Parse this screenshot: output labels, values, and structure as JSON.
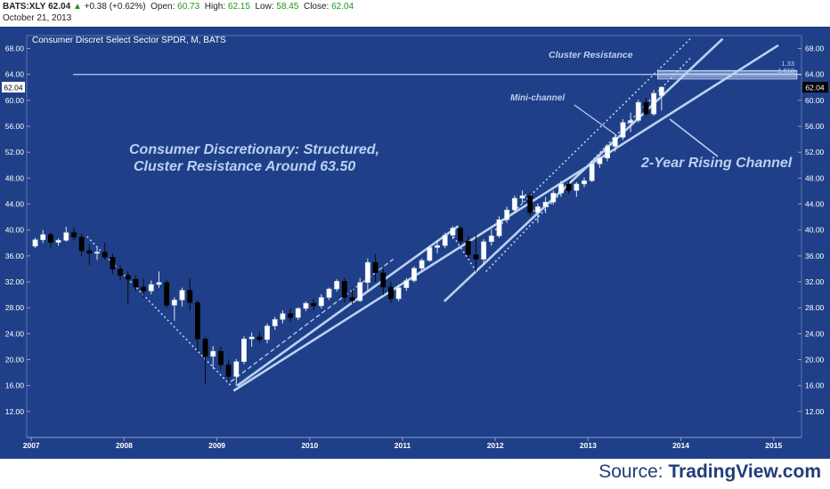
{
  "header": {
    "symbol": "BATS:XLY",
    "last": "62.04",
    "change": "+0.38 (+0.62%)",
    "open_label": "Open:",
    "open": "60.73",
    "high_label": "High:",
    "high": "62.15",
    "low_label": "Low:",
    "low": "58.45",
    "close_label": "Close:",
    "close": "62.04",
    "date": "October 21, 2013"
  },
  "footer": {
    "source_label": "Source:",
    "source_name": "TradingView.com"
  },
  "colors": {
    "background": "#1f4088",
    "header_bg": "#ffffff",
    "candle_up": "#ffffff",
    "candle_down": "#000000",
    "channel": "#bcd0f2",
    "annotation": "#bcd0f2",
    "axis_text": "#ffffff",
    "up_change": "#1a9a1a"
  },
  "icons": {
    "change_arrow": "up-triangle-icon"
  },
  "chart_data": {
    "type": "candlestick",
    "title": "Consumer Discret Select Sector SPDR, M, BATS",
    "ylim": [
      8,
      70
    ],
    "xlim": [
      2006.95,
      2015.3
    ],
    "y_ticks": [
      "12.00",
      "16.00",
      "20.00",
      "24.00",
      "28.00",
      "32.00",
      "36.00",
      "40.00",
      "44.00",
      "48.00",
      "52.00",
      "56.00",
      "60.00",
      "64.00",
      "68.00"
    ],
    "x_ticks": [
      "2007",
      "2008",
      "2009",
      "2010",
      "2011",
      "2012",
      "2013",
      "2014",
      "2015"
    ],
    "last_price_label": "62.04",
    "last_price": 62.04,
    "candles": [
      {
        "t": "2007-01",
        "o": 37.5,
        "h": 38.8,
        "l": 37.2,
        "c": 38.5
      },
      {
        "t": "2007-02",
        "o": 38.5,
        "h": 40.0,
        "l": 38.0,
        "c": 39.3
      },
      {
        "t": "2007-03",
        "o": 39.3,
        "h": 39.6,
        "l": 37.2,
        "c": 38.1
      },
      {
        "t": "2007-04",
        "o": 38.1,
        "h": 38.7,
        "l": 37.6,
        "c": 38.4
      },
      {
        "t": "2007-05",
        "o": 38.4,
        "h": 40.5,
        "l": 38.2,
        "c": 39.6
      },
      {
        "t": "2007-06",
        "o": 39.6,
        "h": 40.4,
        "l": 38.4,
        "c": 38.9
      },
      {
        "t": "2007-07",
        "o": 38.9,
        "h": 39.4,
        "l": 36.0,
        "c": 36.8
      },
      {
        "t": "2007-08",
        "o": 36.8,
        "h": 37.8,
        "l": 34.6,
        "c": 36.4
      },
      {
        "t": "2007-09",
        "o": 36.4,
        "h": 37.4,
        "l": 35.4,
        "c": 36.6
      },
      {
        "t": "2007-10",
        "o": 36.6,
        "h": 38.0,
        "l": 35.4,
        "c": 35.8
      },
      {
        "t": "2007-11",
        "o": 35.8,
        "h": 36.4,
        "l": 33.2,
        "c": 34.0
      },
      {
        "t": "2007-12",
        "o": 34.0,
        "h": 34.6,
        "l": 32.2,
        "c": 33.0
      },
      {
        "t": "2008-01",
        "o": 33.0,
        "h": 33.6,
        "l": 28.5,
        "c": 32.4
      },
      {
        "t": "2008-02",
        "o": 32.4,
        "h": 33.0,
        "l": 30.6,
        "c": 31.2
      },
      {
        "t": "2008-03",
        "o": 31.2,
        "h": 32.5,
        "l": 29.6,
        "c": 30.6
      },
      {
        "t": "2008-04",
        "o": 30.6,
        "h": 32.2,
        "l": 30.1,
        "c": 31.6
      },
      {
        "t": "2008-05",
        "o": 31.6,
        "h": 33.6,
        "l": 31.1,
        "c": 31.9
      },
      {
        "t": "2008-06",
        "o": 31.9,
        "h": 32.3,
        "l": 28.0,
        "c": 28.4
      },
      {
        "t": "2008-07",
        "o": 28.4,
        "h": 29.6,
        "l": 26.0,
        "c": 29.2
      },
      {
        "t": "2008-08",
        "o": 29.2,
        "h": 31.1,
        "l": 28.2,
        "c": 30.7
      },
      {
        "t": "2008-09",
        "o": 30.7,
        "h": 32.5,
        "l": 27.5,
        "c": 28.8
      },
      {
        "t": "2008-10",
        "o": 28.8,
        "h": 29.2,
        "l": 21.2,
        "c": 23.2
      },
      {
        "t": "2008-11",
        "o": 23.2,
        "h": 23.6,
        "l": 16.2,
        "c": 20.5
      },
      {
        "t": "2008-12",
        "o": 20.5,
        "h": 22.1,
        "l": 18.6,
        "c": 21.3
      },
      {
        "t": "2009-01",
        "o": 21.3,
        "h": 22.0,
        "l": 18.4,
        "c": 19.2
      },
      {
        "t": "2009-02",
        "o": 19.2,
        "h": 19.9,
        "l": 16.6,
        "c": 17.4
      },
      {
        "t": "2009-03",
        "o": 17.4,
        "h": 20.1,
        "l": 15.9,
        "c": 19.7
      },
      {
        "t": "2009-04",
        "o": 19.7,
        "h": 23.6,
        "l": 19.3,
        "c": 23.2
      },
      {
        "t": "2009-05",
        "o": 23.2,
        "h": 24.2,
        "l": 22.0,
        "c": 23.5
      },
      {
        "t": "2009-06",
        "o": 23.5,
        "h": 24.4,
        "l": 22.6,
        "c": 23.1
      },
      {
        "t": "2009-07",
        "o": 23.1,
        "h": 25.6,
        "l": 22.5,
        "c": 25.2
      },
      {
        "t": "2009-08",
        "o": 25.2,
        "h": 26.6,
        "l": 24.6,
        "c": 26.2
      },
      {
        "t": "2009-09",
        "o": 26.2,
        "h": 27.6,
        "l": 25.6,
        "c": 27.1
      },
      {
        "t": "2009-10",
        "o": 27.1,
        "h": 27.9,
        "l": 25.9,
        "c": 26.5
      },
      {
        "t": "2009-11",
        "o": 26.5,
        "h": 28.1,
        "l": 26.1,
        "c": 27.9
      },
      {
        "t": "2009-12",
        "o": 27.9,
        "h": 29.0,
        "l": 27.5,
        "c": 28.7
      },
      {
        "t": "2010-01",
        "o": 28.7,
        "h": 29.4,
        "l": 27.6,
        "c": 28.3
      },
      {
        "t": "2010-02",
        "o": 28.3,
        "h": 30.1,
        "l": 27.9,
        "c": 29.6
      },
      {
        "t": "2010-03",
        "o": 29.6,
        "h": 31.1,
        "l": 29.2,
        "c": 30.9
      },
      {
        "t": "2010-04",
        "o": 30.9,
        "h": 32.4,
        "l": 30.5,
        "c": 32.1
      },
      {
        "t": "2010-05",
        "o": 32.1,
        "h": 32.6,
        "l": 28.8,
        "c": 29.6
      },
      {
        "t": "2010-06",
        "o": 29.6,
        "h": 31.1,
        "l": 28.6,
        "c": 29.1
      },
      {
        "t": "2010-07",
        "o": 29.1,
        "h": 32.6,
        "l": 28.9,
        "c": 31.9
      },
      {
        "t": "2010-08",
        "o": 31.9,
        "h": 35.6,
        "l": 30.6,
        "c": 35.0
      },
      {
        "t": "2010-09",
        "o": 35.0,
        "h": 36.3,
        "l": 32.0,
        "c": 33.4
      },
      {
        "t": "2010-10",
        "o": 33.4,
        "h": 34.0,
        "l": 30.0,
        "c": 31.2
      },
      {
        "t": "2010-11",
        "o": 31.2,
        "h": 32.0,
        "l": 28.8,
        "c": 29.4
      },
      {
        "t": "2010-12",
        "o": 29.4,
        "h": 31.6,
        "l": 29.0,
        "c": 31.1
      },
      {
        "t": "2011-01",
        "o": 31.1,
        "h": 32.6,
        "l": 30.6,
        "c": 32.2
      },
      {
        "t": "2011-02",
        "o": 32.2,
        "h": 34.4,
        "l": 31.9,
        "c": 34.1
      },
      {
        "t": "2011-03",
        "o": 34.1,
        "h": 35.6,
        "l": 33.6,
        "c": 35.3
      },
      {
        "t": "2011-04",
        "o": 35.3,
        "h": 37.6,
        "l": 35.1,
        "c": 37.3
      },
      {
        "t": "2011-05",
        "o": 37.3,
        "h": 38.4,
        "l": 36.4,
        "c": 37.6
      },
      {
        "t": "2011-06",
        "o": 37.6,
        "h": 39.6,
        "l": 37.2,
        "c": 39.2
      },
      {
        "t": "2011-07",
        "o": 39.2,
        "h": 40.6,
        "l": 38.6,
        "c": 40.3
      },
      {
        "t": "2011-08",
        "o": 40.3,
        "h": 40.6,
        "l": 37.6,
        "c": 38.3
      },
      {
        "t": "2011-09",
        "o": 38.3,
        "h": 39.1,
        "l": 35.6,
        "c": 36.2
      },
      {
        "t": "2011-10",
        "o": 36.2,
        "h": 39.4,
        "l": 33.6,
        "c": 35.5
      },
      {
        "t": "2011-11",
        "o": 35.5,
        "h": 38.6,
        "l": 34.6,
        "c": 38.2
      },
      {
        "t": "2011-12",
        "o": 38.2,
        "h": 40.1,
        "l": 37.6,
        "c": 39.1
      },
      {
        "t": "2012-01",
        "o": 39.1,
        "h": 42.1,
        "l": 38.8,
        "c": 41.6
      },
      {
        "t": "2012-02",
        "o": 41.6,
        "h": 43.6,
        "l": 41.1,
        "c": 43.1
      },
      {
        "t": "2012-03",
        "o": 43.1,
        "h": 45.3,
        "l": 42.6,
        "c": 44.9
      },
      {
        "t": "2012-04",
        "o": 44.9,
        "h": 46.1,
        "l": 44.1,
        "c": 45.3
      },
      {
        "t": "2012-05",
        "o": 45.3,
        "h": 45.8,
        "l": 42.1,
        "c": 42.7
      },
      {
        "t": "2012-06",
        "o": 42.7,
        "h": 44.1,
        "l": 41.1,
        "c": 43.6
      },
      {
        "t": "2012-07",
        "o": 43.6,
        "h": 45.1,
        "l": 42.6,
        "c": 44.3
      },
      {
        "t": "2012-08",
        "o": 44.3,
        "h": 46.1,
        "l": 43.9,
        "c": 45.7
      },
      {
        "t": "2012-09",
        "o": 45.7,
        "h": 47.6,
        "l": 45.1,
        "c": 47.1
      },
      {
        "t": "2012-10",
        "o": 47.1,
        "h": 47.6,
        "l": 45.6,
        "c": 46.1
      },
      {
        "t": "2012-11",
        "o": 46.1,
        "h": 47.4,
        "l": 45.1,
        "c": 47.1
      },
      {
        "t": "2012-12",
        "o": 47.1,
        "h": 48.1,
        "l": 46.6,
        "c": 47.6
      },
      {
        "t": "2013-01",
        "o": 47.6,
        "h": 50.6,
        "l": 47.4,
        "c": 50.2
      },
      {
        "t": "2013-02",
        "o": 50.2,
        "h": 51.4,
        "l": 49.6,
        "c": 51.1
      },
      {
        "t": "2013-03",
        "o": 51.1,
        "h": 53.2,
        "l": 50.6,
        "c": 52.9
      },
      {
        "t": "2013-04",
        "o": 52.9,
        "h": 54.6,
        "l": 52.1,
        "c": 54.3
      },
      {
        "t": "2013-05",
        "o": 54.3,
        "h": 57.1,
        "l": 53.9,
        "c": 56.6
      },
      {
        "t": "2013-06",
        "o": 56.6,
        "h": 58.1,
        "l": 55.1,
        "c": 56.9
      },
      {
        "t": "2013-07",
        "o": 56.9,
        "h": 60.1,
        "l": 56.6,
        "c": 59.7
      },
      {
        "t": "2013-08",
        "o": 59.7,
        "h": 60.4,
        "l": 57.6,
        "c": 57.9
      },
      {
        "t": "2013-09",
        "o": 57.9,
        "h": 61.6,
        "l": 57.6,
        "c": 61.1
      },
      {
        "t": "2013-10",
        "o": 60.73,
        "h": 62.15,
        "l": 58.45,
        "c": 62.04
      }
    ],
    "annotations": {
      "main_text_1": "Consumer Discretionary: Structured,",
      "main_text_2": "Cluster Resistance Around 63.50",
      "cluster_label": "Cluster Resistance",
      "mini_channel_label": "Mini-channel",
      "rising_channel_label": "2-Year Rising Channel",
      "fib_1": "1.33",
      "fib_2": "1.618"
    },
    "trendlines": [
      {
        "name": "rising-channel-lower",
        "style": "solid",
        "p1": [
          2009.18,
          15.2
        ],
        "p2": [
          2015.05,
          68.5
        ]
      },
      {
        "name": "rising-channel-upper",
        "style": "solid",
        "p1": [
          2011.45,
          29.0
        ],
        "p2": [
          2014.45,
          69.5
        ]
      },
      {
        "name": "rising-channel-base",
        "style": "solid",
        "p1": [
          2009.22,
          16.0
        ],
        "p2": [
          2011.6,
          40.6
        ]
      },
      {
        "name": "mini-channel-lower",
        "style": "dotted",
        "p1": [
          2011.9,
          33.6
        ],
        "p2": [
          2014.1,
          66.5
        ]
      },
      {
        "name": "mini-channel-upper",
        "style": "dotted",
        "p1": [
          2012.0,
          40.0
        ],
        "p2": [
          2014.1,
          69.5
        ]
      },
      {
        "name": "bear-decline",
        "style": "dotted",
        "p1": [
          2007.6,
          39.0
        ],
        "p2": [
          2009.15,
          16.0
        ]
      },
      {
        "name": "recovery-dashed",
        "style": "dashed",
        "p1": [
          2009.15,
          16.6
        ],
        "p2": [
          2010.9,
          35.5
        ]
      },
      {
        "name": "dip-2011-down",
        "style": "dotted",
        "p1": [
          2011.55,
          39.0
        ],
        "p2": [
          2011.8,
          33.5
        ]
      },
      {
        "name": "dip-2012-down",
        "style": "dotted",
        "p1": [
          2012.32,
          45.5
        ],
        "p2": [
          2012.45,
          42.0
        ]
      }
    ],
    "resistance_levels": [
      63.6,
      63.9,
      64.2,
      64.5
    ],
    "cluster_box": {
      "x": [
        2013.75,
        2015.25
      ],
      "y": [
        63.3,
        64.6
      ]
    }
  }
}
